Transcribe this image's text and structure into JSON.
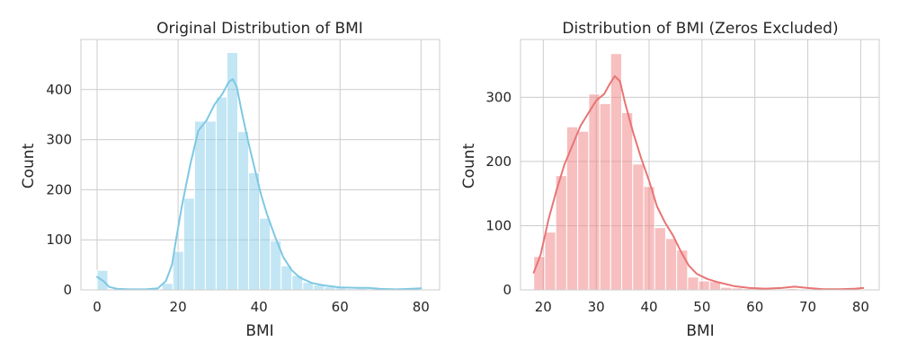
{
  "chart_data": [
    {
      "type": "bar",
      "title": "Original Distribution of BMI",
      "xlabel": "BMI",
      "ylabel": "Count",
      "xlim": [
        -4.0,
        84.6
      ],
      "ylim": [
        0,
        500
      ],
      "xticks": [
        0,
        20,
        40,
        60,
        80
      ],
      "yticks": [
        0,
        100,
        200,
        300,
        400
      ],
      "grid": true,
      "bar_color": "#87ceeb",
      "kde_color": "#7ec8e3",
      "bins": [
        {
          "x0": 0.0,
          "x1": 2.67,
          "count": 39
        },
        {
          "x0": 2.67,
          "x1": 5.35,
          "count": 0
        },
        {
          "x0": 5.35,
          "x1": 8.02,
          "count": 0
        },
        {
          "x0": 8.02,
          "x1": 10.69,
          "count": 0
        },
        {
          "x0": 10.69,
          "x1": 13.37,
          "count": 0
        },
        {
          "x0": 13.37,
          "x1": 16.04,
          "count": 0
        },
        {
          "x0": 16.04,
          "x1": 18.72,
          "count": 13
        },
        {
          "x0": 18.72,
          "x1": 21.39,
          "count": 77
        },
        {
          "x0": 21.39,
          "x1": 24.06,
          "count": 183
        },
        {
          "x0": 24.06,
          "x1": 26.74,
          "count": 337
        },
        {
          "x0": 26.74,
          "x1": 29.41,
          "count": 337
        },
        {
          "x0": 29.41,
          "x1": 32.08,
          "count": 385
        },
        {
          "x0": 32.08,
          "x1": 34.76,
          "count": 474
        },
        {
          "x0": 34.76,
          "x1": 37.43,
          "count": 316
        },
        {
          "x0": 37.43,
          "x1": 40.1,
          "count": 234
        },
        {
          "x0": 40.1,
          "x1": 42.78,
          "count": 143
        },
        {
          "x0": 42.78,
          "x1": 45.45,
          "count": 98
        },
        {
          "x0": 45.45,
          "x1": 48.12,
          "count": 48
        },
        {
          "x0": 48.12,
          "x1": 50.8,
          "count": 29
        },
        {
          "x0": 50.8,
          "x1": 53.47,
          "count": 15
        },
        {
          "x0": 53.47,
          "x1": 56.15,
          "count": 10
        },
        {
          "x0": 56.15,
          "x1": 58.82,
          "count": 6
        },
        {
          "x0": 58.82,
          "x1": 61.49,
          "count": 4
        },
        {
          "x0": 61.49,
          "x1": 64.17,
          "count": 2
        },
        {
          "x0": 64.17,
          "x1": 66.84,
          "count": 3
        },
        {
          "x0": 66.84,
          "x1": 69.51,
          "count": 2
        },
        {
          "x0": 69.51,
          "x1": 72.19,
          "count": 1
        },
        {
          "x0": 72.19,
          "x1": 74.86,
          "count": 1
        },
        {
          "x0": 74.86,
          "x1": 77.53,
          "count": 1
        },
        {
          "x0": 77.53,
          "x1": 80.21,
          "count": 1
        }
      ],
      "kde": [
        [
          0,
          26
        ],
        [
          1.5,
          18
        ],
        [
          3,
          6
        ],
        [
          5,
          2
        ],
        [
          8,
          1
        ],
        [
          12,
          1
        ],
        [
          15,
          3
        ],
        [
          17,
          18
        ],
        [
          18.5,
          50
        ],
        [
          19.5,
          100
        ],
        [
          21,
          170
        ],
        [
          23,
          250
        ],
        [
          25,
          318
        ],
        [
          27,
          338
        ],
        [
          29,
          370
        ],
        [
          31,
          392
        ],
        [
          32.5,
          415
        ],
        [
          33.5,
          421
        ],
        [
          34.5,
          405
        ],
        [
          36,
          345
        ],
        [
          37.5,
          290
        ],
        [
          39,
          240
        ],
        [
          40.5,
          190
        ],
        [
          42,
          150
        ],
        [
          44,
          105
        ],
        [
          46,
          65
        ],
        [
          48,
          40
        ],
        [
          50,
          25
        ],
        [
          53,
          14
        ],
        [
          56,
          9
        ],
        [
          60,
          5
        ],
        [
          64,
          4
        ],
        [
          67,
          4
        ],
        [
          70,
          2
        ],
        [
          74,
          1
        ],
        [
          77,
          2
        ],
        [
          80,
          3
        ]
      ]
    },
    {
      "type": "bar",
      "title": "Distribution of BMI (Zeros Excluded)",
      "xlabel": "BMI",
      "ylabel": "Count",
      "xlim": [
        15.7,
        83.5
      ],
      "ylim": [
        0,
        390
      ],
      "xticks": [
        20,
        30,
        40,
        50,
        60,
        70,
        80
      ],
      "yticks": [
        0,
        100,
        200,
        300
      ],
      "grid": true,
      "bar_color": "#f08080",
      "kde_color": "#e97474",
      "bins": [
        {
          "x0": 18.2,
          "x1": 20.28,
          "count": 52
        },
        {
          "x0": 20.28,
          "x1": 22.36,
          "count": 90
        },
        {
          "x0": 22.36,
          "x1": 24.43,
          "count": 178
        },
        {
          "x0": 24.43,
          "x1": 26.51,
          "count": 254
        },
        {
          "x0": 26.51,
          "x1": 28.59,
          "count": 247
        },
        {
          "x0": 28.59,
          "x1": 30.67,
          "count": 305
        },
        {
          "x0": 30.67,
          "x1": 32.74,
          "count": 290
        },
        {
          "x0": 32.74,
          "x1": 34.82,
          "count": 368
        },
        {
          "x0": 34.82,
          "x1": 36.9,
          "count": 276
        },
        {
          "x0": 36.9,
          "x1": 38.98,
          "count": 196
        },
        {
          "x0": 38.98,
          "x1": 41.05,
          "count": 161
        },
        {
          "x0": 41.05,
          "x1": 43.13,
          "count": 97
        },
        {
          "x0": 43.13,
          "x1": 45.21,
          "count": 80
        },
        {
          "x0": 45.21,
          "x1": 47.29,
          "count": 62
        },
        {
          "x0": 47.29,
          "x1": 49.37,
          "count": 20
        },
        {
          "x0": 49.37,
          "x1": 51.44,
          "count": 14
        },
        {
          "x0": 51.44,
          "x1": 53.52,
          "count": 13
        },
        {
          "x0": 53.52,
          "x1": 55.6,
          "count": 4
        },
        {
          "x0": 55.6,
          "x1": 57.68,
          "count": 3
        },
        {
          "x0": 57.68,
          "x1": 59.75,
          "count": 2
        },
        {
          "x0": 59.75,
          "x1": 61.83,
          "count": 2
        },
        {
          "x0": 61.83,
          "x1": 63.91,
          "count": 1
        },
        {
          "x0": 63.91,
          "x1": 65.99,
          "count": 1
        },
        {
          "x0": 65.99,
          "x1": 68.06,
          "count": 2
        },
        {
          "x0": 68.06,
          "x1": 70.14,
          "count": 1
        },
        {
          "x0": 70.14,
          "x1": 72.22,
          "count": 1
        },
        {
          "x0": 72.22,
          "x1": 74.3,
          "count": 1
        },
        {
          "x0": 74.3,
          "x1": 76.38,
          "count": 1
        },
        {
          "x0": 76.38,
          "x1": 78.45,
          "count": 1
        },
        {
          "x0": 78.45,
          "x1": 80.53,
          "count": 1
        }
      ],
      "kde": [
        [
          18.2,
          27
        ],
        [
          19.5,
          55
        ],
        [
          21,
          110
        ],
        [
          22.5,
          155
        ],
        [
          24,
          195
        ],
        [
          25.5,
          225
        ],
        [
          27,
          255
        ],
        [
          28.5,
          275
        ],
        [
          30,
          295
        ],
        [
          31.5,
          305
        ],
        [
          32.5,
          320
        ],
        [
          33.5,
          333
        ],
        [
          34.5,
          325
        ],
        [
          35.5,
          290
        ],
        [
          37,
          245
        ],
        [
          38.5,
          205
        ],
        [
          40,
          170
        ],
        [
          41.5,
          130
        ],
        [
          43,
          105
        ],
        [
          44.5,
          85
        ],
        [
          46,
          60
        ],
        [
          47.5,
          38
        ],
        [
          49,
          25
        ],
        [
          51,
          17
        ],
        [
          53,
          12
        ],
        [
          56,
          6
        ],
        [
          59,
          3
        ],
        [
          62,
          2
        ],
        [
          65,
          3
        ],
        [
          67.5,
          5
        ],
        [
          70,
          3
        ],
        [
          73,
          1
        ],
        [
          76,
          1
        ],
        [
          79,
          2
        ],
        [
          80.5,
          3
        ]
      ]
    }
  ]
}
